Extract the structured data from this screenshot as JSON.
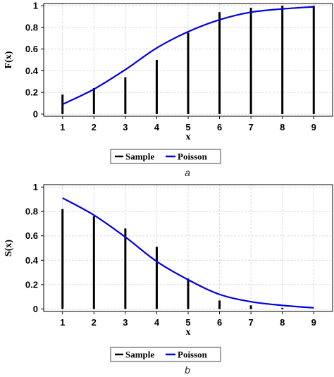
{
  "chart_data": [
    {
      "type": "bar+line",
      "ylabel": "F(x)",
      "xlabel": "x",
      "caption": "a",
      "x": [
        1,
        2,
        3,
        4,
        5,
        6,
        7,
        8,
        9
      ],
      "xticks": [
        "1",
        "2",
        "3",
        "4",
        "5",
        "6",
        "7",
        "8",
        "9"
      ],
      "yticks": [
        "0",
        "0.2",
        "0.4",
        "0.6",
        "0.8",
        "1"
      ],
      "xlim": [
        0.4,
        9.6
      ],
      "ylim": [
        -0.02,
        1.02
      ],
      "grid": true,
      "legend": {
        "position": "bottom",
        "entries": [
          "Sample",
          "Poisson"
        ]
      },
      "series": [
        {
          "name": "Sample",
          "kind": "bar",
          "color": "#000000",
          "values": [
            0.18,
            0.24,
            0.34,
            0.5,
            0.75,
            0.94,
            0.98,
            1.0,
            1.0
          ]
        },
        {
          "name": "Poisson",
          "kind": "line",
          "color": "#0000dd",
          "values": [
            0.09,
            0.23,
            0.41,
            0.61,
            0.76,
            0.87,
            0.94,
            0.97,
            0.99
          ]
        }
      ]
    },
    {
      "type": "bar+line",
      "ylabel": "S(x)",
      "xlabel": "x",
      "caption": "b",
      "x": [
        1,
        2,
        3,
        4,
        5,
        6,
        7,
        8,
        9
      ],
      "xticks": [
        "1",
        "2",
        "3",
        "4",
        "5",
        "6",
        "7",
        "8",
        "9"
      ],
      "yticks": [
        "0",
        "0.2",
        "0.4",
        "0.6",
        "0.8",
        "1"
      ],
      "xlim": [
        0.4,
        9.6
      ],
      "ylim": [
        -0.02,
        1.02
      ],
      "grid": true,
      "legend": {
        "position": "bottom",
        "entries": [
          "Sample",
          "Poisson"
        ]
      },
      "series": [
        {
          "name": "Sample",
          "kind": "bar",
          "color": "#000000",
          "values": [
            0.82,
            0.76,
            0.66,
            0.51,
            0.25,
            0.07,
            0.03,
            0.01,
            0.0
          ]
        },
        {
          "name": "Poisson",
          "kind": "line",
          "color": "#0000dd",
          "values": [
            0.91,
            0.77,
            0.59,
            0.39,
            0.24,
            0.12,
            0.06,
            0.03,
            0.01
          ]
        }
      ]
    }
  ]
}
